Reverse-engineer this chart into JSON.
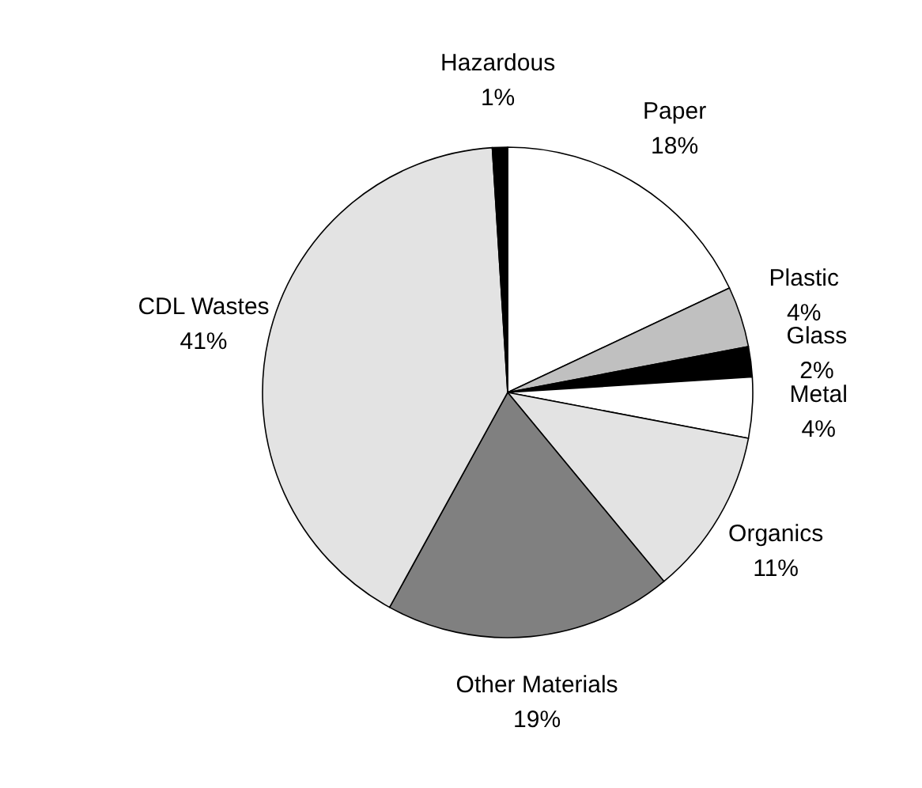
{
  "chart_data": {
    "type": "pie",
    "categories": [
      "Paper",
      "Plastic",
      "Glass",
      "Metal",
      "Organics",
      "Other Materials",
      "CDL Wastes",
      "Hazardous"
    ],
    "values": [
      18,
      4,
      2,
      4,
      11,
      19,
      41,
      1
    ],
    "value_labels": [
      "18%",
      "4%",
      "2%",
      "4%",
      "11%",
      "19%",
      "41%",
      "1%"
    ],
    "colors": [
      "#ffffff",
      "#c0c0c0",
      "#000000",
      "#ffffff",
      "#e3e3e3",
      "#808080",
      "#e3e3e3",
      "#000000"
    ],
    "legend": false
  }
}
